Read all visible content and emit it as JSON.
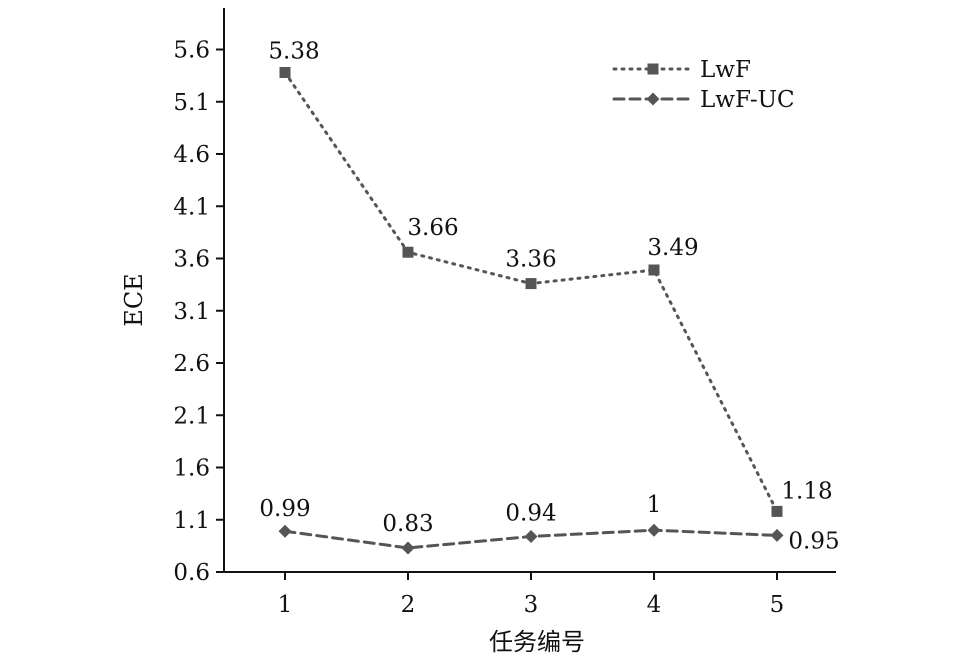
{
  "chart_data": {
    "type": "line",
    "title": "",
    "xlabel": "任务编号",
    "ylabel": "ECE",
    "categories": [
      "1",
      "2",
      "3",
      "4",
      "5"
    ],
    "ylim": [
      0.6,
      6.0
    ],
    "yticks": [
      "0.6",
      "1.1",
      "1.6",
      "2.1",
      "2.6",
      "3.1",
      "3.6",
      "4.1",
      "4.6",
      "5.1",
      "5.6"
    ],
    "grid": false,
    "legend_position": "top-right",
    "series": [
      {
        "name": "LwF",
        "values": [
          5.38,
          3.66,
          3.36,
          3.49,
          1.18
        ],
        "labels": [
          "5.38",
          "3.66",
          "3.36",
          "3.49",
          "1.18"
        ],
        "line_style": "dotted",
        "marker": "square",
        "color": "#555555"
      },
      {
        "name": "LwF-UC",
        "values": [
          0.99,
          0.83,
          0.94,
          1.0,
          0.95
        ],
        "labels": [
          "0.99",
          "0.83",
          "0.94",
          "1",
          "0.95"
        ],
        "line_style": "dashed",
        "marker": "diamond",
        "color": "#555555"
      }
    ]
  }
}
